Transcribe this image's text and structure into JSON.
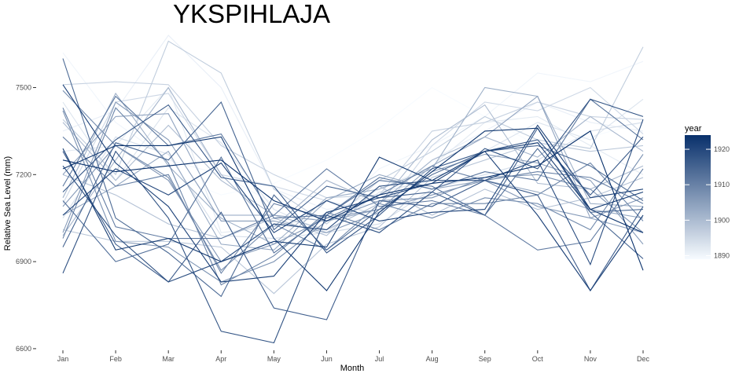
{
  "chart_data": {
    "type": "line",
    "title": "YKSPIHLAJA",
    "xlabel": "Month",
    "ylabel": "Relative Sea Level (mm)",
    "categories": [
      "Jan",
      "Feb",
      "Mar",
      "Apr",
      "May",
      "Jun",
      "Jul",
      "Aug",
      "Sep",
      "Oct",
      "Nov",
      "Dec"
    ],
    "ylim": [
      6570,
      7680
    ],
    "yticks": [
      6600,
      6900,
      7200,
      7500
    ],
    "grid": false,
    "legend": {
      "title": "year",
      "position": "right",
      "type": "continuous",
      "range": [
        1889,
        1924
      ],
      "ticks": [
        1890,
        1900,
        1910,
        1920
      ],
      "color_low": "#f7fbff",
      "color_high": "#08306b"
    },
    "series": [
      {
        "year": 1889,
        "values": [
          7180,
          7150,
          7200,
          7130,
          7170,
          7250,
          7360,
          7500,
          7400,
          7300,
          7330,
          7380
        ]
      },
      {
        "year": 1890,
        "values": [
          7620,
          7380,
          7250,
          7200,
          7100,
          7050,
          7220,
          7300,
          7400,
          7550,
          7520,
          7590
        ]
      },
      {
        "year": 1891,
        "values": [
          7350,
          7420,
          7680,
          7500,
          7150,
          7080,
          7100,
          7250,
          7350,
          7450,
          7380,
          7350
        ]
      },
      {
        "year": 1892,
        "values": [
          7280,
          7300,
          7500,
          7000,
          7020,
          7060,
          7150,
          7230,
          7380,
          7400,
          7300,
          7200
        ]
      },
      {
        "year": 1893,
        "values": [
          7450,
          7180,
          7430,
          7310,
          7080,
          7000,
          7140,
          7180,
          7280,
          7380,
          7320,
          7460
        ]
      },
      {
        "year": 1894,
        "values": [
          7050,
          7330,
          7270,
          6990,
          6980,
          7000,
          7030,
          7150,
          7200,
          7250,
          7350,
          7380
        ]
      },
      {
        "year": 1895,
        "values": [
          7100,
          7450,
          7480,
          7200,
          7160,
          7110,
          7060,
          7300,
          7450,
          7420,
          7500,
          7340
        ]
      },
      {
        "year": 1896,
        "values": [
          7510,
          7520,
          7510,
          7300,
          7200,
          7120,
          7130,
          7350,
          7380,
          7450,
          7400,
          7390
        ]
      },
      {
        "year": 1897,
        "values": [
          7390,
          7200,
          7660,
          7550,
          7150,
          7030,
          7180,
          7280,
          7400,
          7320,
          7290,
          7640
        ]
      },
      {
        "year": 1898,
        "values": [
          7010,
          6970,
          6970,
          6950,
          6790,
          6960,
          7020,
          7190,
          7250,
          7310,
          7280,
          7300
        ]
      },
      {
        "year": 1899,
        "values": [
          7200,
          7130,
          7030,
          6980,
          7050,
          6990,
          7160,
          7060,
          7150,
          7080,
          7120,
          7190
        ]
      },
      {
        "year": 1900,
        "values": [
          7380,
          7180,
          7370,
          7180,
          7060,
          7010,
          7100,
          7320,
          7440,
          7170,
          7150,
          7230
        ]
      },
      {
        "year": 1901,
        "values": [
          6990,
          7250,
          7500,
          7200,
          7020,
          7180,
          7100,
          7250,
          7330,
          7260,
          7400,
          7280
        ]
      },
      {
        "year": 1902,
        "values": [
          7120,
          7480,
          7230,
          7050,
          6960,
          7120,
          7150,
          7220,
          7500,
          7470,
          7100,
          7090
        ]
      },
      {
        "year": 1903,
        "values": [
          7060,
          7160,
          7280,
          6960,
          6940,
          7110,
          7200,
          7150,
          7180,
          7140,
          7080,
          7050
        ]
      },
      {
        "year": 1904,
        "values": [
          7200,
          7400,
          7410,
          7060,
          7060,
          7040,
          7080,
          7230,
          7330,
          7470,
          7050,
          7000
        ]
      },
      {
        "year": 1905,
        "values": [
          7000,
          7450,
          7320,
          7040,
          7040,
          7000,
          7070,
          7210,
          7270,
          7240,
          7180,
          6960
        ]
      },
      {
        "year": 1906,
        "values": [
          7090,
          7300,
          7180,
          6900,
          6960,
          7050,
          7080,
          7130,
          7180,
          7090,
          7050,
          7120
        ]
      },
      {
        "year": 1907,
        "values": [
          7420,
          6970,
          6950,
          6830,
          6900,
          7040,
          7110,
          7120,
          7190,
          7200,
          7150,
          7000
        ]
      },
      {
        "year": 1908,
        "values": [
          7490,
          7300,
          7190,
          6870,
          7030,
          6940,
          7100,
          7050,
          7120,
          7100,
          7010,
          7270
        ]
      },
      {
        "year": 1909,
        "values": [
          6980,
          7430,
          7240,
          6820,
          6920,
          7070,
          7010,
          7100,
          7100,
          7130,
          7240,
          7040
        ]
      },
      {
        "year": 1910,
        "values": [
          7330,
          7160,
          7200,
          6860,
          7100,
          7050,
          7130,
          7230,
          7180,
          7210,
          7190,
          7100
        ]
      },
      {
        "year": 1911,
        "values": [
          7430,
          7020,
          6980,
          6980,
          7060,
          7220,
          7090,
          7110,
          7060,
          6940,
          6970,
          7220
        ]
      },
      {
        "year": 1912,
        "values": [
          7160,
          7470,
          7300,
          7340,
          7050,
          7060,
          7190,
          7150,
          7210,
          7180,
          7460,
          7320
        ]
      },
      {
        "year": 1913,
        "values": [
          7110,
          6900,
          6960,
          7260,
          6930,
          7060,
          7180,
          7160,
          7060,
          7290,
          7070,
          7080
        ]
      },
      {
        "year": 1914,
        "values": [
          7600,
          7050,
          6930,
          6780,
          7130,
          6940,
          7080,
          7200,
          7280,
          7300,
          7230,
          7110
        ]
      },
      {
        "year": 1915,
        "values": [
          6950,
          7310,
          7250,
          7450,
          7010,
          7160,
          7120,
          7140,
          7060,
          7360,
          7070,
          6910
        ]
      },
      {
        "year": 1916,
        "values": [
          7280,
          6960,
          6830,
          7070,
          6740,
          6700,
          7110,
          7090,
          7180,
          7130,
          6800,
          7090
        ]
      },
      {
        "year": 1917,
        "values": [
          7140,
          7320,
          7440,
          7190,
          7160,
          6930,
          7060,
          7220,
          7280,
          7320,
          7130,
          7330
        ]
      },
      {
        "year": 1918,
        "values": [
          6860,
          7280,
          7050,
          6660,
          6620,
          7060,
          7000,
          7140,
          7290,
          7220,
          7460,
          7400
        ]
      },
      {
        "year": 1919,
        "values": [
          7230,
          6990,
          6830,
          6900,
          7030,
          7010,
          7160,
          7180,
          7180,
          7250,
          6890,
          7390
        ]
      },
      {
        "year": 1920,
        "values": [
          7060,
          7220,
          7130,
          7240,
          7000,
          7110,
          7040,
          7070,
          7080,
          7370,
          7120,
          7150
        ]
      },
      {
        "year": 1921,
        "values": [
          7510,
          7240,
          7090,
          6830,
          6850,
          7070,
          7120,
          7170,
          7280,
          7060,
          6800,
          7060
        ]
      },
      {
        "year": 1922,
        "values": [
          7290,
          6940,
          6980,
          6900,
          6970,
          6950,
          7260,
          7180,
          7280,
          7310,
          7080,
          7140
        ]
      },
      {
        "year": 1923,
        "values": [
          7220,
          7300,
          7300,
          7330,
          6980,
          6800,
          7070,
          7210,
          7350,
          7360,
          7080,
          7000
        ]
      },
      {
        "year": 1924,
        "values": [
          7250,
          7210,
          7230,
          7250,
          7110,
          7040,
          7130,
          7170,
          7190,
          7230,
          7350,
          6870
        ]
      }
    ]
  }
}
